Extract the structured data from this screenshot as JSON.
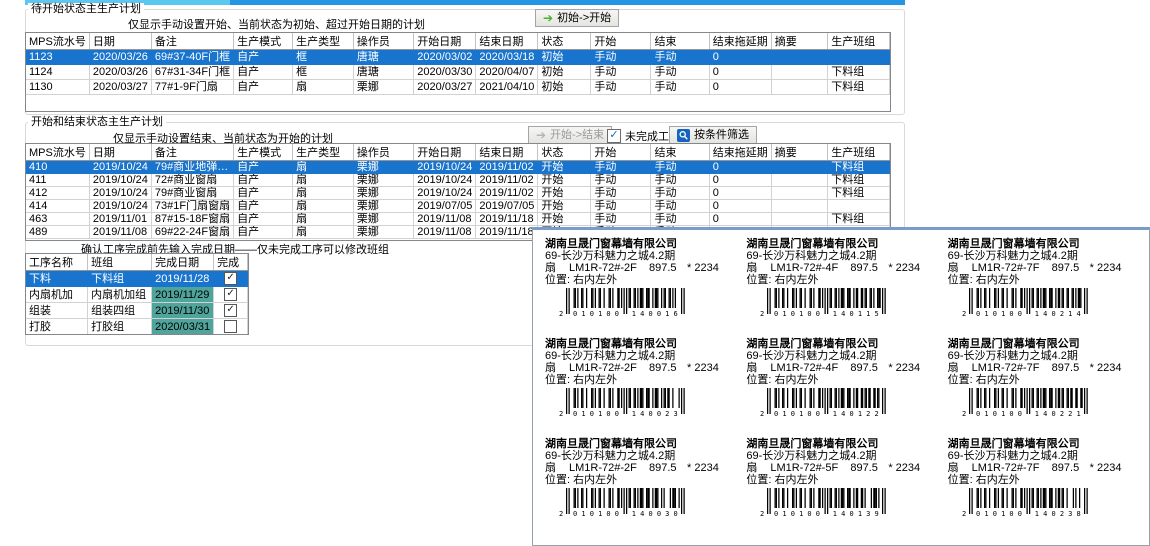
{
  "colors": {
    "selection": "#1874cd",
    "teal": "#4fa49c",
    "green_arrow": "#4caf2e",
    "blue_icon": "#1565c0",
    "strip_light": "#5bc8f2",
    "strip_dark": "#2496e4"
  },
  "section1": {
    "title": "待开始状态主生产计划",
    "subtitle": "仅显示手动设置开始、当前状态为初始、超过开始日期的计划",
    "action": "初始->开始",
    "columns": [
      "MPS流水号",
      "日期",
      "备注",
      "生产模式",
      "生产类型",
      "操作员",
      "开始日期",
      "结束日期",
      "状态",
      "开始",
      "结束",
      "结束拖延期",
      "摘要",
      "生产班组"
    ],
    "selected": 0,
    "rows": [
      [
        "1123",
        "2020/03/26",
        "69#37-40F门框",
        "自产",
        "框",
        "唐瑭",
        "2020/03/02",
        "2020/03/18",
        "初始",
        "手动",
        "手动",
        "0",
        "",
        ""
      ],
      [
        "1124",
        "2020/03/26",
        "67#31-34F门框",
        "自产",
        "框",
        "唐瑭",
        "2020/03/30",
        "2020/04/07",
        "初始",
        "手动",
        "手动",
        "0",
        "",
        "下料组"
      ],
      [
        "1130",
        "2020/03/27",
        "77#1-9F门扇",
        "自产",
        "扇",
        "栗娜",
        "2020/03/27",
        "2021/04/10",
        "初始",
        "手动",
        "手动",
        "0",
        "",
        "下料组"
      ]
    ]
  },
  "section2": {
    "title": "开始和结束状态主生产计划",
    "subtitle": "仅显示手动设置结束、当前状态为开始的计划",
    "action": "开始->结束",
    "unfinished_label": "未完成工序",
    "unfinished_checked": true,
    "filter_label": "按条件筛选",
    "columns": [
      "MPS流水号",
      "日期",
      "备注",
      "生产模式",
      "生产类型",
      "操作员",
      "开始日期",
      "结束日期",
      "状态",
      "开始",
      "结束",
      "结束拖延期",
      "摘要",
      "生产班组"
    ],
    "selected": 0,
    "rows": [
      [
        "410",
        "2019/10/24",
        "79#商业地弹…",
        "自产",
        "扇",
        "栗娜",
        "2019/10/24",
        "2019/11/02",
        "开始",
        "手动",
        "手动",
        "0",
        "",
        "下料组"
      ],
      [
        "411",
        "2019/10/24",
        "72#商业窗扇",
        "自产",
        "扇",
        "栗娜",
        "2019/10/24",
        "2019/11/02",
        "开始",
        "手动",
        "手动",
        "0",
        "",
        "下料组"
      ],
      [
        "412",
        "2019/10/24",
        "79#商业窗扇",
        "自产",
        "扇",
        "栗娜",
        "2019/10/24",
        "2019/11/02",
        "开始",
        "手动",
        "手动",
        "0",
        "",
        "下料组"
      ],
      [
        "414",
        "2019/10/24",
        "73#1F门扇窗扇",
        "自产",
        "扇",
        "栗娜",
        "2019/07/05",
        "2019/07/05",
        "开始",
        "手动",
        "手动",
        "0",
        "",
        ""
      ],
      [
        "463",
        "2019/11/01",
        "87#15-18F窗扇",
        "自产",
        "扇",
        "栗娜",
        "2019/11/08",
        "2019/11/18",
        "开始",
        "手动",
        "手动",
        "0",
        "",
        "下料组"
      ],
      [
        "489",
        "2019/11/08",
        "69#22-24F窗扇",
        "自产",
        "扇",
        "栗娜",
        "2019/11/08",
        "2019/11/18",
        "开始",
        "手动",
        "手动",
        "0",
        "",
        ""
      ]
    ]
  },
  "process_panel": {
    "note": "确认工序完成前先输入完成日期——仅未完成工序可以修改班组",
    "columns": [
      "工序名称",
      "班组",
      "完成日期",
      "完成"
    ],
    "selected": 0,
    "rows": [
      {
        "name": "下料",
        "team": "下料组",
        "date": "2019/11/28",
        "done": true
      },
      {
        "name": "内扇机加",
        "team": "内扇机加组",
        "date": "2019/11/29",
        "done": true
      },
      {
        "name": "组装",
        "team": "组装四组",
        "date": "2019/11/30",
        "done": true
      },
      {
        "name": "打胶",
        "team": "打胶组",
        "date": "2020/03/31",
        "done": false
      }
    ]
  },
  "label_window": {
    "labels": [
      {
        "company": "湖南旦晟门窗幕墙有限公司",
        "project": "69-长沙万科魅力之城4.2期",
        "type": "扇",
        "code": "LM1R-72#-2F",
        "width": "897.5",
        "height": "* 2234",
        "pos_label": "位置:",
        "position": "右内左外",
        "barcode": "2010100140016"
      },
      {
        "company": "湖南旦晟门窗幕墙有限公司",
        "project": "69-长沙万科魅力之城4.2期",
        "type": "扇",
        "code": "LM1R-72#-4F",
        "width": "897.5",
        "height": "* 2234",
        "pos_label": "位置:",
        "position": "右内左外",
        "barcode": "2010100140115"
      },
      {
        "company": "湖南旦晟门窗幕墙有限公司",
        "project": "69-长沙万科魅力之城4.2期",
        "type": "扇",
        "code": "LM1R-72#-7F",
        "width": "897.5",
        "height": "* 2234",
        "pos_label": "位置:",
        "position": "右内左外",
        "barcode": "2010100140214"
      },
      {
        "company": "湖南旦晟门窗幕墙有限公司",
        "project": "69-长沙万科魅力之城4.2期",
        "type": "扇",
        "code": "LM1R-72#-2F",
        "width": "897.5",
        "height": "* 2234",
        "pos_label": "位置:",
        "position": "右内左外",
        "barcode": "2010100140023"
      },
      {
        "company": "湖南旦晟门窗幕墙有限公司",
        "project": "69-长沙万科魅力之城4.2期",
        "type": "扇",
        "code": "LM1R-72#-4F",
        "width": "897.5",
        "height": "* 2234",
        "pos_label": "位置:",
        "position": "右内左外",
        "barcode": "2010100140122"
      },
      {
        "company": "湖南旦晟门窗幕墙有限公司",
        "project": "69-长沙万科魅力之城4.2期",
        "type": "扇",
        "code": "LM1R-72#-7F",
        "width": "897.5",
        "height": "* 2234",
        "pos_label": "位置:",
        "position": "右内左外",
        "barcode": "2010100140221"
      },
      {
        "company": "湖南旦晟门窗幕墙有限公司",
        "project": "69-长沙万科魅力之城4.2期",
        "type": "扇",
        "code": "LM1R-72#-2F",
        "width": "897.5",
        "height": "* 2234",
        "pos_label": "位置:",
        "position": "右内左外",
        "barcode": "2010100140030"
      },
      {
        "company": "湖南旦晟门窗幕墙有限公司",
        "project": "69-长沙万科魅力之城4.2期",
        "type": "扇",
        "code": "LM1R-72#-5F",
        "width": "897.5",
        "height": "* 2234",
        "pos_label": "位置:",
        "position": "右内左外",
        "barcode": "2010100140139"
      },
      {
        "company": "湖南旦晟门窗幕墙有限公司",
        "project": "69-长沙万科魅力之城4.2期",
        "type": "扇",
        "code": "LM1R-72#-7F",
        "width": "897.5",
        "height": "* 2234",
        "pos_label": "位置:",
        "position": "右内左外",
        "barcode": "2010100140238"
      }
    ]
  }
}
